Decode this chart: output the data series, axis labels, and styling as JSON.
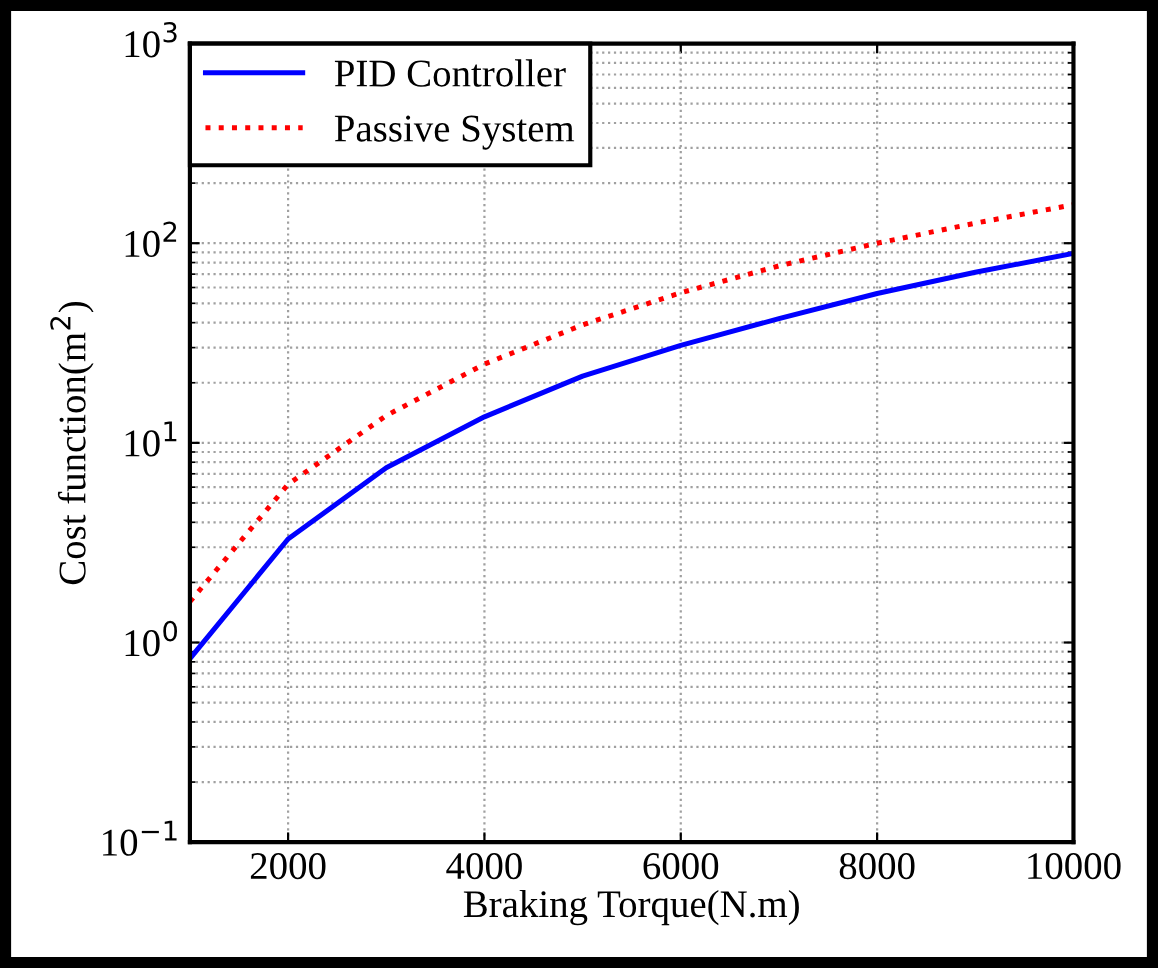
{
  "chart_data": {
    "type": "line",
    "xlabel": "Braking Torque(N.m)",
    "ylabel": "Cost function(m$^{2}$)",
    "x": [
      1000,
      2000,
      3000,
      4000,
      5000,
      6000,
      7000,
      8000,
      9000,
      10000
    ],
    "series": [
      {
        "name": "PID Controller",
        "color": "#0000ff",
        "line_style": "solid",
        "values": [
          0.83,
          3.3,
          7.5,
          13.5,
          21.6,
          30.8,
          41.9,
          56,
          71.5,
          89
        ]
      },
      {
        "name": "Passive System",
        "color": "#ff0000",
        "line_style": "dotted",
        "values": [
          1.6,
          6.2,
          13.7,
          24.8,
          39,
          56.5,
          77,
          100,
          126,
          156
        ]
      }
    ],
    "log": "y",
    "xlim": [
      1000,
      10000
    ],
    "xticks": [
      2000,
      4000,
      6000,
      8000,
      10000
    ],
    "ylim": [
      0.1,
      1000
    ],
    "yticks": [
      {
        "value": 0.1,
        "label": "10$^{−1}$"
      },
      {
        "value": 1,
        "label": "10$^{0}$"
      },
      {
        "value": 10,
        "label": "10$^{1}$"
      },
      {
        "value": 100,
        "label": "10$^{2}$"
      },
      {
        "value": 1000,
        "label": "10$^{3}$"
      }
    ],
    "grid": true,
    "legend": "top left",
    "marker": "none"
  }
}
